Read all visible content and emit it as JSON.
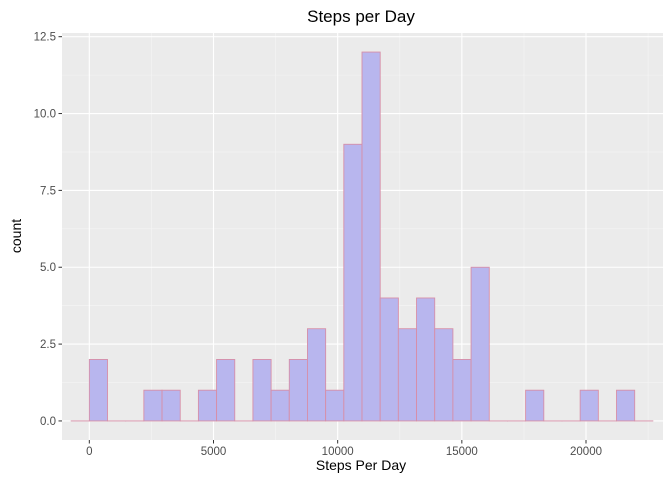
{
  "chart_data": {
    "type": "bar",
    "title": "Steps per Day",
    "xlabel": "Steps Per Day",
    "ylabel": "count",
    "xlim": [
      -1100,
      23100
    ],
    "ylim": [
      -0.62,
      12.62
    ],
    "x_ticks": [
      0,
      5000,
      10000,
      15000,
      20000
    ],
    "x_tick_labels": [
      "0",
      "5000",
      "10000",
      "15000",
      "20000"
    ],
    "y_ticks": [
      0,
      2.5,
      5,
      7.5,
      10,
      12.5
    ],
    "y_tick_labels": [
      "0.0",
      "2.5",
      "5.0",
      "7.5",
      "10.0",
      "12.5"
    ],
    "bin_width": 732,
    "bin_centers": [
      -366,
      366,
      1098,
      1830,
      2562,
      3294,
      4026,
      4758,
      5490,
      6222,
      6954,
      7686,
      8418,
      9150,
      9882,
      10614,
      11346,
      12078,
      12810,
      13542,
      14274,
      15006,
      15738,
      16470,
      17202,
      17934,
      18666,
      19398,
      20130,
      20862,
      21594,
      22326
    ],
    "values": [
      0,
      2,
      0,
      0,
      1,
      1,
      0,
      1,
      2,
      0,
      2,
      1,
      2,
      3,
      1,
      9,
      12,
      4,
      3,
      4,
      3,
      2,
      5,
      0,
      0,
      1,
      0,
      0,
      1,
      0,
      1,
      0
    ],
    "grid": true,
    "colors": {
      "panel_background": "#ebebeb",
      "grid_major": "#ffffff",
      "bar_fill": "#b8b6ee",
      "bar_outline": "#d78fa8",
      "axis_text": "#4d4d4d",
      "title_text": "#000000"
    }
  }
}
